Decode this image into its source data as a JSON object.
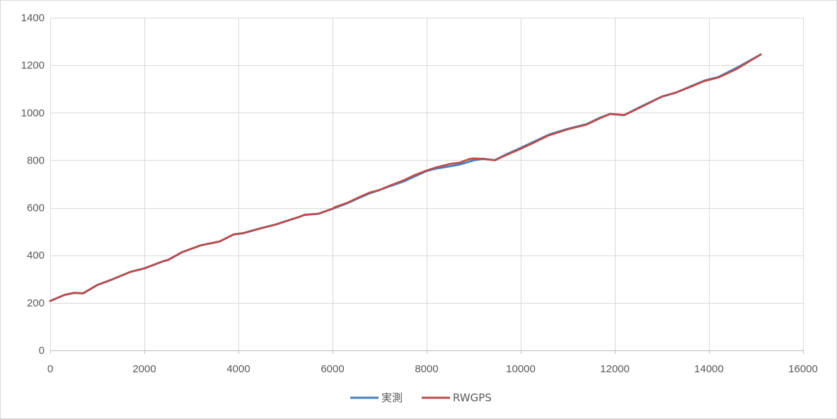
{
  "chart_data": {
    "type": "line",
    "title": "",
    "xlabel": "",
    "ylabel": "",
    "xlim": [
      0,
      16000
    ],
    "ylim": [
      0,
      1400
    ],
    "x_ticks": [
      0,
      2000,
      4000,
      6000,
      8000,
      10000,
      12000,
      14000,
      16000
    ],
    "y_ticks": [
      0,
      200,
      400,
      600,
      800,
      1000,
      1200,
      1400
    ],
    "x_tick_labels": [
      "0",
      "2000",
      "4000",
      "6000",
      "8000",
      "10000",
      "12000",
      "14000",
      "16000"
    ],
    "y_tick_labels": [
      "0",
      "200",
      "400",
      "600",
      "800",
      "1000",
      "1200",
      "1400"
    ],
    "grid": true,
    "legend_position": "bottom",
    "series": [
      {
        "name": "実測",
        "color": "#4a7ebb",
        "x": [
          0,
          300,
          500,
          700,
          1000,
          1300,
          1700,
          2000,
          2400,
          2500,
          2800,
          3200,
          3600,
          3900,
          4100,
          4500,
          4800,
          5000,
          5300,
          5400,
          5700,
          6000,
          6300,
          6600,
          6800,
          7000,
          7200,
          7500,
          8000,
          8200,
          8700,
          9000,
          9200,
          9450,
          9700,
          10000,
          10300,
          10600,
          11000,
          11400,
          11700,
          11900,
          12200,
          12600,
          13000,
          13300,
          13600,
          13900,
          14200,
          14600,
          15100
        ],
        "y": [
          208,
          233,
          242,
          240,
          275,
          297,
          330,
          345,
          375,
          380,
          413,
          442,
          458,
          488,
          493,
          515,
          530,
          543,
          562,
          570,
          575,
          596,
          618,
          645,
          662,
          675,
          690,
          710,
          755,
          765,
          782,
          800,
          806,
          800,
          825,
          852,
          880,
          908,
          932,
          952,
          980,
          995,
          990,
          1030,
          1068,
          1085,
          1110,
          1135,
          1150,
          1190,
          1245
        ]
      },
      {
        "name": "RWGPS",
        "color": "#be4b48",
        "x": [
          0,
          300,
          500,
          700,
          1000,
          1300,
          1700,
          2000,
          2400,
          2500,
          2800,
          3200,
          3600,
          3900,
          4100,
          4500,
          4800,
          5000,
          5300,
          5400,
          5700,
          6000,
          6050,
          6300,
          6600,
          6800,
          7000,
          7200,
          7500,
          7750,
          8000,
          8200,
          8500,
          8700,
          8900,
          9000,
          9200,
          9450,
          9700,
          10000,
          10300,
          10600,
          11000,
          11400,
          11700,
          11900,
          12200,
          12600,
          13000,
          13300,
          13600,
          13900,
          14200,
          14600,
          15100
        ],
        "y": [
          208,
          233,
          242,
          240,
          275,
          297,
          330,
          345,
          375,
          380,
          413,
          442,
          458,
          488,
          493,
          515,
          530,
          543,
          562,
          570,
          575,
          596,
          603,
          620,
          648,
          665,
          675,
          692,
          715,
          738,
          757,
          770,
          785,
          790,
          805,
          808,
          806,
          800,
          822,
          848,
          876,
          905,
          930,
          950,
          978,
          995,
          990,
          1028,
          1068,
          1085,
          1108,
          1133,
          1148,
          1185,
          1245
        ]
      }
    ]
  }
}
